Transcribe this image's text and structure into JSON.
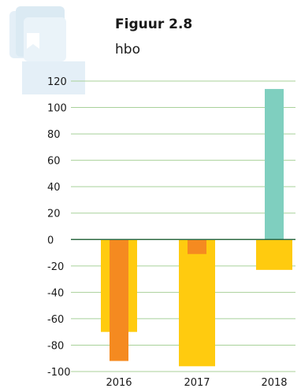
{
  "figure": {
    "label": "Figuur 2.8",
    "subtitle": "hbo",
    "icon": "book-stack-icon"
  },
  "colors": {
    "grid": "#a8d19a",
    "zero_line": "#2e6a43",
    "wide_bar": "#ffcb0f",
    "narrow_bar_2016": "#f58a20",
    "narrow_bar_2017": "#f58a20",
    "narrow_bar_2018": "#7fcfbf",
    "icon": "#dbeaf3"
  },
  "chart_data": {
    "type": "bar",
    "categories": [
      "2016",
      "2017",
      "2018"
    ],
    "series": [
      {
        "values": [
          -70,
          -96,
          -23
        ]
      },
      {
        "values": [
          -92,
          -11,
          114
        ]
      }
    ],
    "yticks": [
      120,
      100,
      80,
      60,
      40,
      20,
      0,
      -20,
      -40,
      -60,
      -80,
      -100
    ],
    "ylim": [
      -100,
      120
    ],
    "grid": true,
    "legend": "none"
  }
}
